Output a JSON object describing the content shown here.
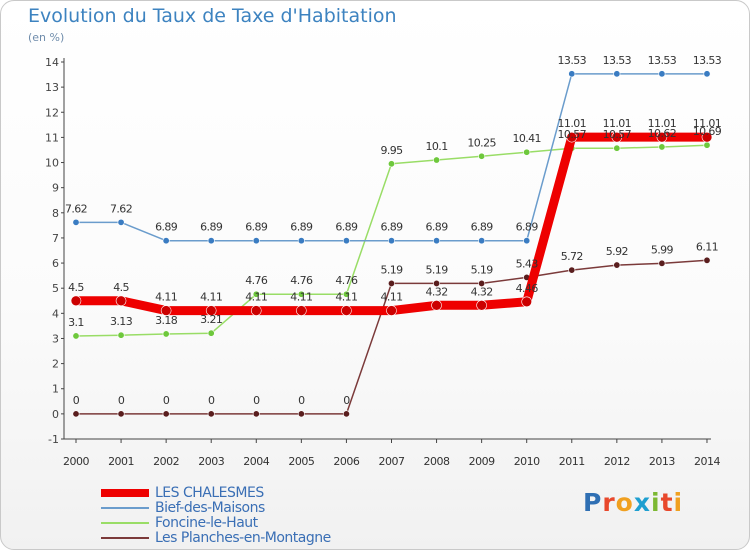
{
  "header": {
    "title": "Evolution du Taux de Taxe d'Habitation",
    "subtitle": "(en %)"
  },
  "logo": {
    "letters": [
      "P",
      "r",
      "o",
      "x",
      "i",
      "t",
      "i"
    ],
    "colors": [
      "#2f6fb3",
      "#e8482c",
      "#f0a020",
      "#1e9fd0",
      "#7cb832",
      "#e8482c",
      "#f0a020"
    ]
  },
  "chart_data": {
    "type": "line",
    "title": "Evolution du Taux de Taxe d'Habitation",
    "ylabel": "(en %)",
    "x": [
      "2000",
      "2001",
      "2002",
      "2003",
      "2004",
      "2005",
      "2006",
      "2007",
      "2008",
      "2009",
      "2010",
      "2011",
      "2012",
      "2013",
      "2014"
    ],
    "ylim": [
      -1,
      14
    ],
    "yticks": [
      "-1",
      "0",
      "1",
      "2",
      "3",
      "4",
      "5",
      "6",
      "7",
      "8",
      "9",
      "10",
      "11",
      "12",
      "13",
      "14"
    ],
    "grid": false,
    "legend_position": "bottom-left",
    "series": [
      {
        "name": "LES CHALESMES",
        "color": "#ee0000",
        "line_color": "#ee0000",
        "marker_color": "#cc0000",
        "width": 9,
        "values": [
          4.5,
          4.5,
          4.11,
          4.11,
          4.11,
          4.11,
          4.11,
          4.11,
          4.32,
          4.32,
          4.46,
          11.01,
          11.01,
          11.01,
          11.01
        ],
        "labels": [
          "4.5",
          "4.5",
          "4.11",
          "4.11",
          "4.11",
          "4.11",
          "4.11",
          "4.11",
          "4.32",
          "4.32",
          "4.46",
          "11.01",
          "11.01",
          "11.01",
          "11.01"
        ]
      },
      {
        "name": "Bief-des-Maisons",
        "color": "#6a9ccc",
        "line_color": "#6a9ccc",
        "marker_color": "#3a7cc2",
        "width": 1.5,
        "values": [
          7.62,
          7.62,
          6.89,
          6.89,
          6.89,
          6.89,
          6.89,
          6.89,
          6.89,
          6.89,
          6.89,
          13.53,
          13.53,
          13.53,
          13.53
        ],
        "labels": [
          "7.62",
          "7.62",
          "6.89",
          "6.89",
          "6.89",
          "6.89",
          "6.89",
          "6.89",
          "6.89",
          "6.89",
          "6.89",
          "13.53",
          "13.53",
          "13.53",
          "13.53"
        ]
      },
      {
        "name": "Foncine-le-Haut",
        "color": "#99dd66",
        "line_color": "#99dd66",
        "marker_color": "#6ec83c",
        "width": 1.5,
        "values": [
          3.1,
          3.13,
          3.18,
          3.21,
          4.76,
          4.76,
          4.76,
          9.95,
          10.1,
          10.25,
          10.41,
          10.57,
          10.57,
          10.62,
          10.69
        ],
        "labels": [
          "3.1",
          "3.13",
          "3.18",
          "3.21",
          "4.76",
          "4.76",
          "4.76",
          "9.95",
          "10.1",
          "10.25",
          "10.41",
          "10.57",
          "10.57",
          "10.62",
          "10.69"
        ]
      },
      {
        "name": "Les Planches-en-Montagne",
        "color": "#7b3a3a",
        "line_color": "#7b3a3a",
        "marker_color": "#5a1e1e",
        "width": 1.5,
        "values": [
          0,
          0,
          0,
          0,
          0,
          0,
          0,
          5.19,
          5.19,
          5.19,
          5.43,
          5.72,
          5.92,
          5.99,
          6.11
        ],
        "labels": [
          "0",
          "0",
          "0",
          "0",
          "0",
          "0",
          "0",
          "5.19",
          "5.19",
          "5.19",
          "5.43",
          "5.72",
          "5.92",
          "5.99",
          "6.11"
        ]
      }
    ]
  }
}
